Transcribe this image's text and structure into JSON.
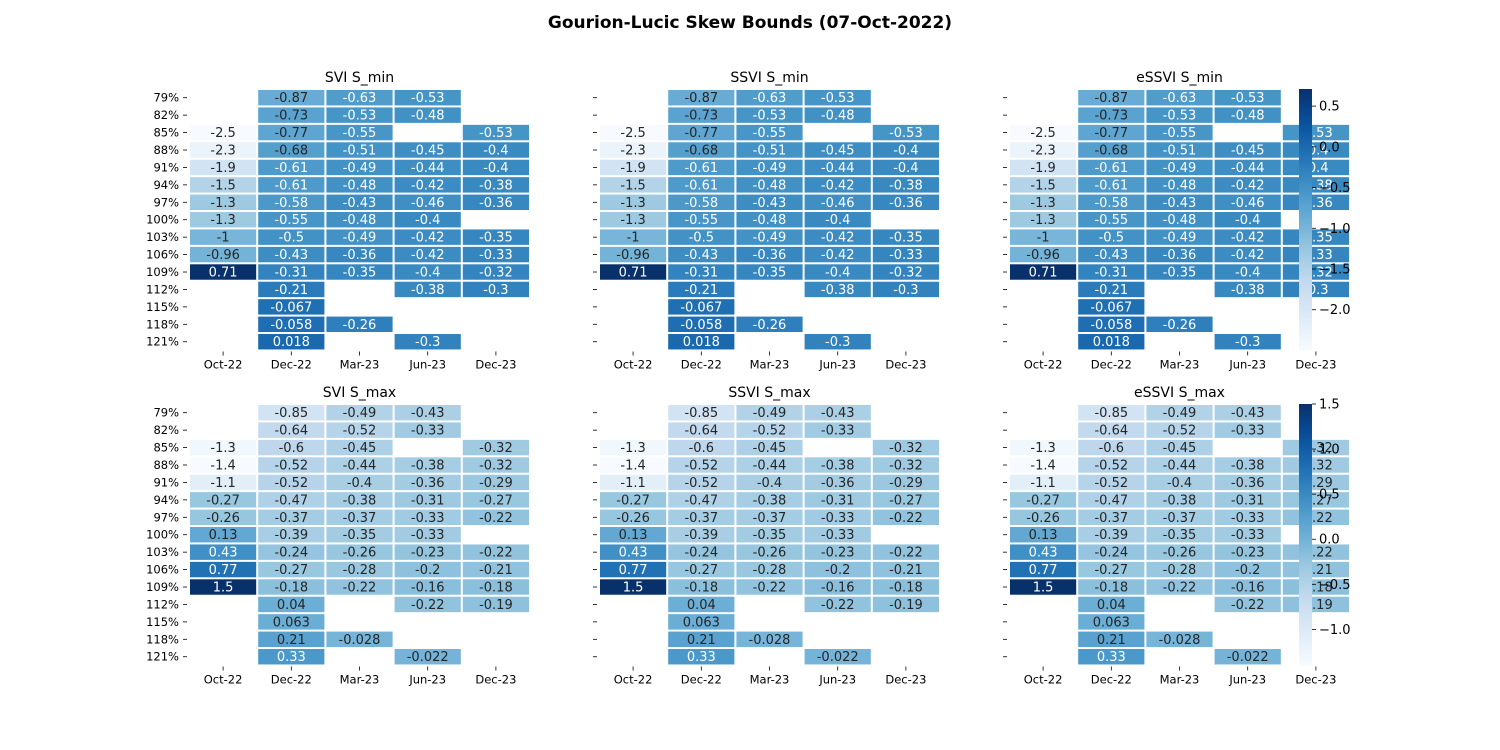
{
  "chart_data": {
    "type": "heatmap",
    "title": "Gourion-Lucic Skew Bounds (07-Oct-2022)",
    "x_categories": [
      "Oct-22",
      "Dec-22",
      "Mar-23",
      "Jun-23",
      "Dec-23"
    ],
    "y_categories": [
      "79%",
      "82%",
      "85%",
      "88%",
      "91%",
      "94%",
      "97%",
      "100%",
      "103%",
      "106%",
      "109%",
      "112%",
      "115%",
      "118%",
      "121%"
    ],
    "colormap": "Blues",
    "colors": {
      "low": "#f7fbff",
      "mid": "#6baed6",
      "high": "#08306b"
    },
    "rows": [
      {
        "colorbar": {
          "range": [
            -2.5,
            0.71
          ],
          "ticks": [
            0.5,
            0.0,
            -0.5,
            -1.0,
            -1.5,
            -2.0
          ],
          "tick_labels": [
            "0.5",
            "0.0",
            "−0.5",
            "−1.0",
            "−1.5",
            "−2.0"
          ]
        },
        "values": [
          [
            null,
            -0.87,
            -0.63,
            -0.53,
            null
          ],
          [
            null,
            -0.73,
            -0.53,
            -0.48,
            null
          ],
          [
            -2.5,
            -0.77,
            -0.55,
            null,
            -0.53
          ],
          [
            -2.3,
            -0.68,
            -0.51,
            -0.45,
            -0.4
          ],
          [
            -1.9,
            -0.61,
            -0.49,
            -0.44,
            -0.4
          ],
          [
            -1.5,
            -0.61,
            -0.48,
            -0.42,
            -0.38
          ],
          [
            -1.3,
            -0.58,
            -0.43,
            -0.46,
            -0.36
          ],
          [
            -1.3,
            -0.55,
            -0.48,
            -0.4,
            null
          ],
          [
            -1,
            -0.5,
            -0.49,
            -0.42,
            -0.35
          ],
          [
            -0.96,
            -0.43,
            -0.36,
            -0.42,
            -0.33
          ],
          [
            0.71,
            -0.31,
            -0.35,
            -0.4,
            -0.32
          ],
          [
            null,
            -0.21,
            null,
            -0.38,
            -0.3
          ],
          [
            null,
            -0.067,
            null,
            null,
            null
          ],
          [
            null,
            -0.058,
            -0.26,
            null,
            null
          ],
          [
            null,
            0.018,
            null,
            -0.3,
            null
          ]
        ],
        "panels": [
          {
            "title": "SVI S_min"
          },
          {
            "title": "SSVI S_min"
          },
          {
            "title": "eSSVI S_min"
          }
        ]
      },
      {
        "colorbar": {
          "range": [
            -1.4,
            1.5
          ],
          "ticks": [
            1.5,
            1.0,
            0.5,
            0.0,
            -0.5,
            -1.0
          ],
          "tick_labels": [
            "1.5",
            "1.0",
            "0.5",
            "0.0",
            "−0.5",
            "−1.0"
          ]
        },
        "values": [
          [
            null,
            -0.85,
            -0.49,
            -0.43,
            null
          ],
          [
            null,
            -0.64,
            -0.52,
            -0.33,
            null
          ],
          [
            -1.3,
            -0.6,
            -0.45,
            null,
            -0.32
          ],
          [
            -1.4,
            -0.52,
            -0.44,
            -0.38,
            -0.32
          ],
          [
            -1.1,
            -0.52,
            -0.4,
            -0.36,
            -0.29
          ],
          [
            -0.27,
            -0.47,
            -0.38,
            -0.31,
            -0.27
          ],
          [
            -0.26,
            -0.37,
            -0.37,
            -0.33,
            -0.22
          ],
          [
            0.13,
            -0.39,
            -0.35,
            -0.33,
            null
          ],
          [
            0.43,
            -0.24,
            -0.26,
            -0.23,
            -0.22
          ],
          [
            0.77,
            -0.27,
            -0.28,
            -0.2,
            -0.21
          ],
          [
            1.5,
            -0.18,
            -0.22,
            -0.16,
            -0.18
          ],
          [
            null,
            0.04,
            null,
            -0.22,
            -0.19
          ],
          [
            null,
            0.063,
            null,
            null,
            null
          ],
          [
            null,
            0.21,
            -0.028,
            null,
            null
          ],
          [
            null,
            0.33,
            null,
            -0.022,
            null
          ]
        ],
        "panels": [
          {
            "title": "SVI S_max"
          },
          {
            "title": "SSVI S_max"
          },
          {
            "title": "eSSVI S_max"
          }
        ]
      }
    ]
  }
}
